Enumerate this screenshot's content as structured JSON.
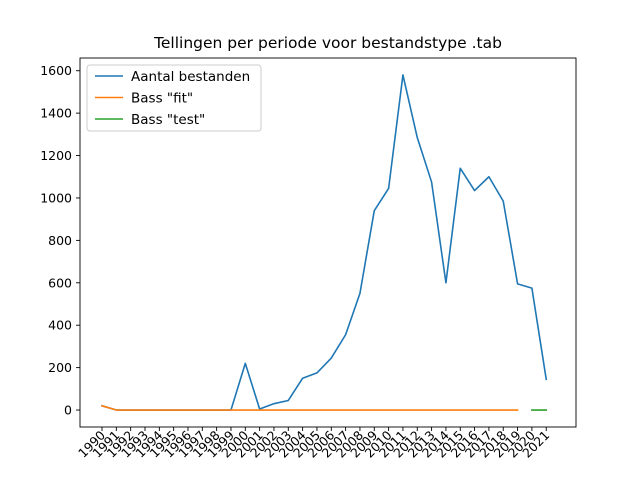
{
  "chart_data": {
    "type": "line",
    "title": "Tellingen per periode voor bestandstype .tab",
    "xlabel": "",
    "ylabel": "",
    "x_ticks": [
      "1990",
      "1991",
      "1992",
      "1993",
      "1994",
      "1995",
      "1996",
      "1997",
      "1998",
      "1999",
      "2000",
      "2001",
      "2002",
      "2003",
      "2004",
      "2005",
      "2006",
      "2007",
      "2008",
      "2009",
      "2010",
      "2011",
      "2012",
      "2013",
      "2014",
      "2015",
      "2016",
      "2017",
      "2018",
      "2019",
      "2020",
      "2021"
    ],
    "y_ticks": [
      0,
      200,
      400,
      600,
      800,
      1000,
      1200,
      1400,
      1600
    ],
    "ylim": [
      -80,
      1660
    ],
    "grid": false,
    "legend_position": "top-left",
    "series": [
      {
        "name": "Aantal bestanden",
        "color": "#1f77b4",
        "points": [
          [
            "1990",
            20
          ],
          [
            "1991",
            0
          ],
          [
            "1992",
            0
          ],
          [
            "1993",
            0
          ],
          [
            "1994",
            0
          ],
          [
            "1995",
            0
          ],
          [
            "1996",
            0
          ],
          [
            "1997",
            0
          ],
          [
            "1998",
            0
          ],
          [
            "1999",
            0
          ],
          [
            "2000",
            220
          ],
          [
            "2001",
            5
          ],
          [
            "2002",
            30
          ],
          [
            "2003",
            45
          ],
          [
            "2004",
            150
          ],
          [
            "2005",
            175
          ],
          [
            "2006",
            245
          ],
          [
            "2007",
            355
          ],
          [
            "2008",
            550
          ],
          [
            "2009",
            940
          ],
          [
            "2010",
            1045
          ],
          [
            "2011",
            1580
          ],
          [
            "2012",
            1285
          ],
          [
            "2013",
            1075
          ],
          [
            "2014",
            600
          ],
          [
            "2015",
            1140
          ],
          [
            "2016",
            1035
          ],
          [
            "2017",
            1100
          ],
          [
            "2018",
            985
          ],
          [
            "2019",
            595
          ],
          [
            "2020",
            575
          ],
          [
            "2021",
            145
          ]
        ]
      },
      {
        "name": "Bass \"fit\"",
        "color": "#ff7f0e",
        "points": [
          [
            "1990",
            20
          ],
          [
            "1991",
            0
          ],
          [
            "1992",
            0
          ],
          [
            "1993",
            0
          ],
          [
            "1994",
            0
          ],
          [
            "1995",
            0
          ],
          [
            "1996",
            0
          ],
          [
            "1997",
            0
          ],
          [
            "1998",
            0
          ],
          [
            "1999",
            0
          ],
          [
            "2000",
            0
          ],
          [
            "2001",
            0
          ],
          [
            "2002",
            0
          ],
          [
            "2003",
            0
          ],
          [
            "2004",
            0
          ],
          [
            "2005",
            0
          ],
          [
            "2006",
            0
          ],
          [
            "2007",
            0
          ],
          [
            "2008",
            0
          ],
          [
            "2009",
            0
          ],
          [
            "2010",
            0
          ],
          [
            "2011",
            0
          ],
          [
            "2012",
            0
          ],
          [
            "2013",
            0
          ],
          [
            "2014",
            0
          ],
          [
            "2015",
            0
          ],
          [
            "2016",
            0
          ],
          [
            "2017",
            0
          ],
          [
            "2018",
            0
          ],
          [
            "2019",
            0
          ]
        ]
      },
      {
        "name": "Bass \"test\"",
        "color": "#2ca02c",
        "points": [
          [
            "2020",
            0
          ],
          [
            "2021",
            0
          ]
        ]
      }
    ]
  }
}
